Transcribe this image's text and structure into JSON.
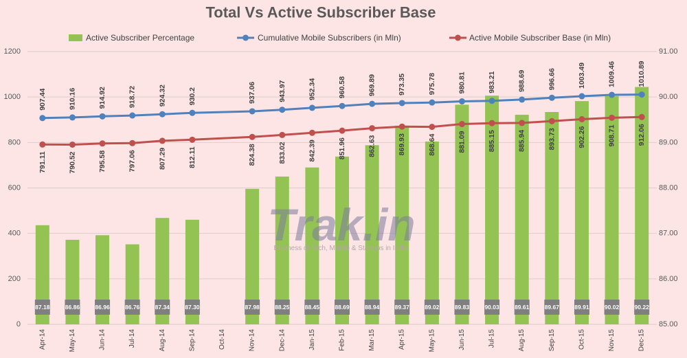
{
  "chart_data": {
    "type": "bar",
    "title": "Total Vs Active Subscriber Base",
    "categories": [
      "Apr-14",
      "May-14",
      "Jun-14",
      "Jul-14",
      "Aug-14",
      "Sep-14",
      "Oct-14",
      "Nov-14",
      "Dec-14",
      "Jan-15",
      "Feb-15",
      "Mar-15",
      "Apr-15",
      "May-15",
      "Jun-15",
      "Jul-15",
      "Aug-15",
      "Sep-15",
      "Oct-15",
      "Nov-15",
      "Dec-15"
    ],
    "series": [
      {
        "name": "Active Subscriber Percentage",
        "type": "bar",
        "axis": "right",
        "color": "#92c353",
        "values": [
          87.18,
          86.86,
          86.96,
          86.76,
          87.34,
          87.3,
          null,
          87.98,
          88.25,
          88.45,
          88.69,
          88.94,
          89.37,
          89.02,
          89.83,
          90.03,
          89.61,
          89.67,
          89.91,
          90.02,
          90.22
        ]
      },
      {
        "name": "Cumulative Mobile Subscribers (in Mln)",
        "type": "line",
        "axis": "left",
        "color": "#4f81bd",
        "values": [
          907.44,
          910.16,
          914.92,
          918.72,
          924.32,
          930.2,
          null,
          937.06,
          943.97,
          952.34,
          960.58,
          969.89,
          973.35,
          975.78,
          980.81,
          983.21,
          988.69,
          996.66,
          1003.49,
          1009.46,
          1010.89
        ]
      },
      {
        "name": "Active Mobile Subscriber Base (in Mln)",
        "type": "line",
        "axis": "left",
        "color": "#c0504d",
        "values": [
          791.11,
          790.52,
          795.58,
          797.06,
          807.29,
          812.11,
          null,
          824.38,
          833.02,
          842.39,
          851.96,
          862.63,
          869.93,
          868.64,
          881.09,
          885.15,
          885.94,
          893.73,
          902.26,
          908.71,
          912.06
        ]
      }
    ],
    "left_axis": {
      "min": 0,
      "max": 1200,
      "ticks": [
        "0",
        "200",
        "400",
        "600",
        "800",
        "1000",
        "1200"
      ]
    },
    "right_axis": {
      "min": 85,
      "max": 91,
      "ticks": [
        "85.00",
        "86.00",
        "87.00",
        "88.00",
        "89.00",
        "90.00",
        "91.00"
      ]
    },
    "data_labels": true,
    "grid": true,
    "legend_position": "top"
  },
  "watermark": {
    "logo": "Trak.in",
    "tagline": "Business of Tech, Mobile & Startups in India"
  },
  "colors": {
    "background": "#fde5e5",
    "gridline": "#dccccc",
    "label_box": "#7f7f7f"
  }
}
